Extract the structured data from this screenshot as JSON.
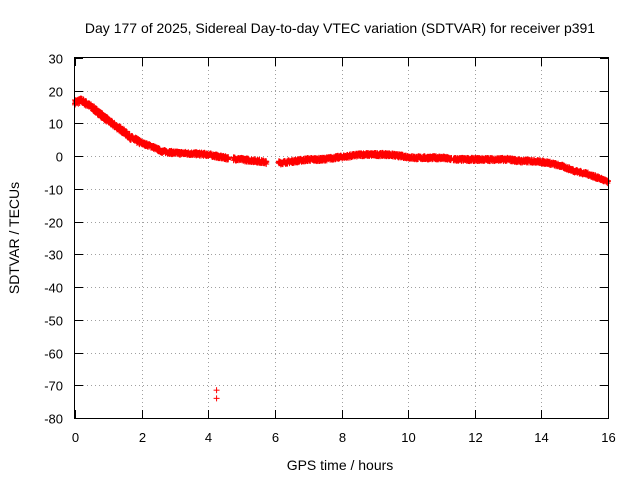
{
  "chart_data": {
    "type": "scatter",
    "title": "Day 177 of 2025, Sidereal Day-to-day VTEC variation (SDTVAR) for receiver p391",
    "xlabel": "GPS time / hours",
    "ylabel": "SDTVAR / TECUs",
    "xlim": [
      0,
      16
    ],
    "ylim": [
      -80,
      30
    ],
    "x_ticks": [
      0,
      2,
      4,
      6,
      8,
      10,
      12,
      14,
      16
    ],
    "y_ticks": [
      30,
      20,
      10,
      0,
      -10,
      -20,
      -30,
      -40,
      -50,
      -60,
      -70,
      -80
    ],
    "grid": true,
    "legend": "none",
    "marker": "+",
    "series": [
      {
        "name": "SDTVAR",
        "color": "#ff0000",
        "trend_x": [
          0.0,
          0.2,
          0.5,
          0.8,
          1.1,
          1.4,
          1.7,
          2.0,
          2.3,
          2.6,
          3.0,
          3.5,
          4.0,
          4.5,
          5.0,
          5.5,
          5.8,
          6.2,
          6.6,
          7.0,
          7.4,
          7.8,
          8.2,
          8.6,
          9.0,
          9.4,
          9.8,
          10.2,
          10.6,
          11.0,
          11.4,
          11.8,
          12.2,
          12.6,
          13.0,
          13.4,
          13.8,
          14.2,
          14.6,
          15.0,
          15.4,
          15.8,
          16.0
        ],
        "trend_y": [
          16.5,
          17.0,
          15.0,
          12.5,
          10.0,
          8.0,
          5.5,
          4.0,
          3.0,
          1.5,
          1.0,
          0.8,
          0.5,
          -0.5,
          -1.0,
          -1.5,
          -2.0,
          -2.0,
          -1.5,
          -1.0,
          -1.0,
          -0.5,
          0.0,
          0.5,
          0.5,
          0.5,
          0.0,
          -0.5,
          -0.5,
          -0.5,
          -1.0,
          -1.0,
          -1.0,
          -1.0,
          -1.0,
          -1.5,
          -1.5,
          -2.0,
          -3.0,
          -4.5,
          -5.5,
          -7.0,
          -8.0
        ],
        "outliers": [
          {
            "x": 4.25,
            "y": -71.5
          },
          {
            "x": 4.25,
            "y": -74.0
          }
        ]
      }
    ]
  }
}
